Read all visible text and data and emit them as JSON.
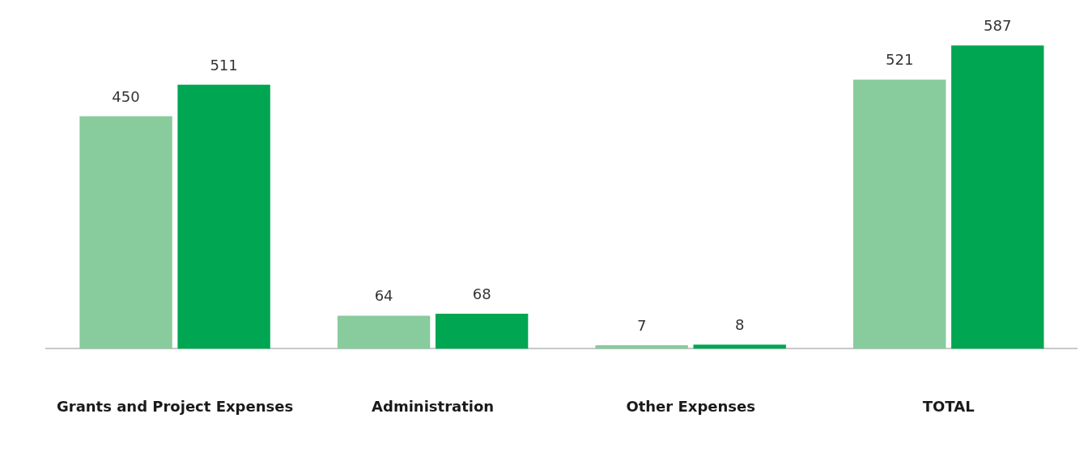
{
  "chart_data": {
    "type": "bar",
    "categories": [
      "Grants and Project Expenses",
      "Administration",
      "Other Expenses",
      "TOTAL"
    ],
    "series": [
      {
        "color": "#88cb9d",
        "values": [
          450,
          64,
          7,
          521
        ]
      },
      {
        "color": "#00a651",
        "values": [
          511,
          68,
          8,
          587
        ]
      }
    ],
    "data_labels": true,
    "grid": false,
    "legend": false
  }
}
